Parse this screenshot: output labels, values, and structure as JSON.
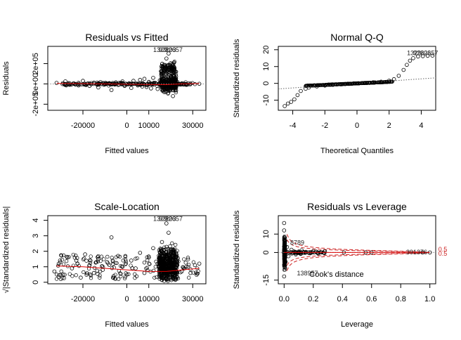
{
  "chart_data": [
    {
      "type": "scatter",
      "title": "Residuals vs Fitted",
      "xlabel": "Fitted values",
      "ylabel": "Residuals",
      "xlim": [
        -36000,
        36000
      ],
      "ylim": [
        -260000,
        370000
      ],
      "xticks": [
        {
          "v": -20000,
          "t": "-20000"
        },
        {
          "v": 0,
          "t": "0"
        },
        {
          "v": 10000,
          "t": "10000"
        },
        {
          "v": 30000,
          "t": "30000"
        }
      ],
      "yticks": [
        {
          "v": -200000,
          "t": "-2e+05"
        },
        {
          "v": 0,
          "t": "0e+00"
        },
        {
          "v": 200000,
          "t": "2e+05"
        }
      ],
      "reference_line": {
        "y": 0,
        "style": "dotted",
        "color": "#888888"
      },
      "smooth": {
        "color": "#dd0000",
        "points": [
          [
            -32000,
            5000
          ],
          [
            -15000,
            2000
          ],
          [
            0,
            -3000
          ],
          [
            10000,
            -6000
          ],
          [
            18000,
            -7000
          ],
          [
            25000,
            0
          ],
          [
            33000,
            4000
          ]
        ]
      },
      "point_labels": [
        "1329",
        "92203",
        "82657"
      ],
      "points": [
        [
          -32000,
          10000
        ],
        [
          -28000,
          25000
        ],
        [
          -26000,
          -8000
        ],
        [
          -24000,
          4000
        ],
        [
          -22000,
          -15000
        ],
        [
          -20000,
          30000
        ],
        [
          -18000,
          2000
        ],
        [
          -17000,
          -20000
        ],
        [
          -15000,
          12000
        ],
        [
          -13000,
          -35000
        ],
        [
          -12000,
          18000
        ],
        [
          -10000,
          -5000
        ],
        [
          -8000,
          8000
        ],
        [
          -7000,
          -60000
        ],
        [
          -5000,
          15000
        ],
        [
          -4000,
          -10000
        ],
        [
          -2000,
          25000
        ],
        [
          -1000,
          -20000
        ],
        [
          1000,
          6000
        ],
        [
          2000,
          -40000
        ],
        [
          3000,
          30000
        ],
        [
          5000,
          -15000
        ],
        [
          6000,
          40000
        ],
        [
          7000,
          -25000
        ],
        [
          8000,
          50000
        ],
        [
          9000,
          -30000
        ],
        [
          10000,
          20000
        ],
        [
          11000,
          -45000
        ],
        [
          12000,
          60000
        ],
        [
          13000,
          10000
        ],
        [
          14000,
          -50000
        ],
        [
          15000,
          35000
        ],
        [
          16000,
          90000
        ],
        [
          17000,
          -80000
        ],
        [
          18000,
          250000
        ],
        [
          19000,
          300000
        ],
        [
          20000,
          150000
        ],
        [
          21000,
          -120000
        ],
        [
          22000,
          -40000
        ],
        [
          23000,
          20000
        ],
        [
          25000,
          5000
        ],
        [
          27000,
          -8000
        ],
        [
          29000,
          3000
        ],
        [
          31000,
          -2000
        ],
        [
          33000,
          1000
        ]
      ],
      "points_note": "dense band"
    },
    {
      "type": "scatter",
      "title": "Normal Q-Q",
      "xlabel": "Theoretical Quantiles",
      "ylabel": "Standardized residuals",
      "xlim": [
        -4.9,
        4.9
      ],
      "ylim": [
        -16,
        22
      ],
      "xticks": [
        {
          "v": -4,
          "t": "-4"
        },
        {
          "v": -2,
          "t": "-2"
        },
        {
          "v": 0,
          "t": "0"
        },
        {
          "v": 2,
          "t": "2"
        },
        {
          "v": 4,
          "t": "4"
        }
      ],
      "yticks": [
        {
          "v": -10,
          "t": "-10"
        },
        {
          "v": 0,
          "t": "0"
        },
        {
          "v": 10,
          "t": "10"
        },
        {
          "v": 20,
          "t": "20"
        }
      ],
      "reference_line": {
        "points": [
          [
            -4.9,
            -3.3
          ],
          [
            4.9,
            3.3
          ]
        ],
        "style": "dotted",
        "color": "#666666"
      },
      "point_labels": [
        "1329",
        "92203",
        "82657"
      ],
      "points": [
        [
          -4.5,
          -13.5
        ],
        [
          -4.3,
          -12
        ],
        [
          -4.1,
          -11
        ],
        [
          -3.9,
          -9.5
        ],
        [
          -3.7,
          -7
        ],
        [
          -3.5,
          -4.5
        ],
        [
          -3.2,
          -3.2
        ],
        [
          -3.0,
          -2.5
        ],
        [
          -2.5,
          -1.8
        ],
        [
          -2.0,
          -1.3
        ],
        [
          -1.5,
          -0.9
        ],
        [
          -1.0,
          -0.6
        ],
        [
          -0.5,
          -0.3
        ],
        [
          0,
          0
        ],
        [
          0.5,
          0.3
        ],
        [
          1.0,
          0.6
        ],
        [
          1.5,
          1.0
        ],
        [
          2.0,
          1.6
        ],
        [
          2.3,
          2.5
        ],
        [
          2.6,
          4.5
        ],
        [
          2.9,
          8
        ],
        [
          3.1,
          11
        ],
        [
          3.3,
          13.5
        ],
        [
          3.5,
          15
        ],
        [
          3.8,
          16
        ],
        [
          4.1,
          16.2
        ],
        [
          4.4,
          16.4
        ],
        [
          4.7,
          16.5
        ]
      ],
      "points_note": "dense band"
    },
    {
      "type": "scatter",
      "title": "Scale-Location",
      "xlabel": "Fitted values",
      "ylabel": "√|Standardized residuals|",
      "xlim": [
        -36000,
        36000
      ],
      "ylim": [
        -0.1,
        4.3
      ],
      "xticks": [
        {
          "v": -20000,
          "t": "-20000"
        },
        {
          "v": 0,
          "t": "0"
        },
        {
          "v": 10000,
          "t": "10000"
        },
        {
          "v": 30000,
          "t": "30000"
        }
      ],
      "yticks": [
        {
          "v": 0,
          "t": "0"
        },
        {
          "v": 1,
          "t": "1"
        },
        {
          "v": 2,
          "t": "2"
        },
        {
          "v": 3,
          "t": "3"
        },
        {
          "v": 4,
          "t": "4"
        }
      ],
      "smooth": {
        "color": "#dd0000",
        "points": [
          [
            -32000,
            1.05
          ],
          [
            -20000,
            1.0
          ],
          [
            -5000,
            0.85
          ],
          [
            10000,
            0.7
          ],
          [
            18000,
            0.7
          ],
          [
            25000,
            0.8
          ],
          [
            33000,
            0.9
          ]
        ]
      },
      "point_labels": [
        "1329",
        "92203",
        "82657"
      ],
      "points": [
        [
          -33000,
          0.7
        ],
        [
          -31000,
          1.2
        ],
        [
          -29000,
          0.5
        ],
        [
          -27000,
          1.6
        ],
        [
          -25000,
          0.9
        ],
        [
          -23000,
          1.4
        ],
        [
          -21000,
          0.3
        ],
        [
          -19000,
          1.8
        ],
        [
          -17000,
          1.1
        ],
        [
          -15000,
          0.6
        ],
        [
          -13000,
          1.5
        ],
        [
          -11000,
          0.8
        ],
        [
          -9000,
          1.3
        ],
        [
          -7000,
          2.9
        ],
        [
          -6000,
          0.4
        ],
        [
          -4000,
          1.7
        ],
        [
          -2000,
          1.0
        ],
        [
          0,
          0.5
        ],
        [
          2000,
          1.4
        ],
        [
          4000,
          0.9
        ],
        [
          6000,
          1.9
        ],
        [
          8000,
          0.6
        ],
        [
          10000,
          1.6
        ],
        [
          12000,
          2.2
        ],
        [
          14000,
          1.2
        ],
        [
          16000,
          2.6
        ],
        [
          18000,
          3.8
        ],
        [
          19000,
          3.2
        ],
        [
          20000,
          2.1
        ],
        [
          21000,
          1.4
        ],
        [
          23000,
          1.1
        ],
        [
          25000,
          0.7
        ],
        [
          27000,
          1.0
        ],
        [
          29000,
          0.6
        ],
        [
          31000,
          1.1
        ],
        [
          33000,
          1.2
        ]
      ],
      "points_note": "dense band"
    },
    {
      "type": "scatter",
      "title": "Residuals vs Leverage",
      "xlabel": "Leverage",
      "ylabel": "Standardized residuals",
      "xlim": [
        -0.04,
        1.04
      ],
      "ylim": [
        -17,
        20
      ],
      "xticks": [
        {
          "v": 0,
          "t": "0.0"
        },
        {
          "v": 0.2,
          "t": "0.2"
        },
        {
          "v": 0.4,
          "t": "0.4"
        },
        {
          "v": 0.6,
          "t": "0.6"
        },
        {
          "v": 0.8,
          "t": "0.8"
        },
        {
          "v": 1.0,
          "t": "1.0"
        }
      ],
      "yticks": [
        {
          "v": -15,
          "t": "-15"
        },
        {
          "v": 0,
          "t": "0"
        },
        {
          "v": 10,
          "t": "10"
        }
      ],
      "reference_line": {
        "y": 0,
        "style": "dotted",
        "color": "#888888"
      },
      "smooth": {
        "color": "#dd0000",
        "points": [
          [
            0,
            0
          ],
          [
            1.0,
            0
          ]
        ]
      },
      "cooks_label": "Cook's distance",
      "cooks_levels": [
        "0.5",
        "0.5"
      ],
      "point_labels": [
        "8789",
        "138957",
        "391376"
      ],
      "points": [
        [
          0.0,
          16
        ],
        [
          0.0,
          12
        ],
        [
          0.0,
          -13
        ],
        [
          0.005,
          8
        ],
        [
          0.01,
          -5
        ],
        [
          0.02,
          3
        ],
        [
          0.03,
          -2
        ],
        [
          0.05,
          1.5
        ],
        [
          0.08,
          -1
        ],
        [
          0.1,
          0.5
        ],
        [
          0.12,
          1.2
        ],
        [
          0.15,
          0.3
        ],
        [
          0.18,
          -0.4
        ],
        [
          0.2,
          0.8
        ],
        [
          0.25,
          0.2
        ],
        [
          0.28,
          0.6
        ],
        [
          0.41,
          0
        ],
        [
          0.56,
          0
        ],
        [
          0.6,
          0
        ],
        [
          0.95,
          0
        ],
        [
          1.0,
          0
        ]
      ],
      "points_note": "dense band"
    }
  ]
}
